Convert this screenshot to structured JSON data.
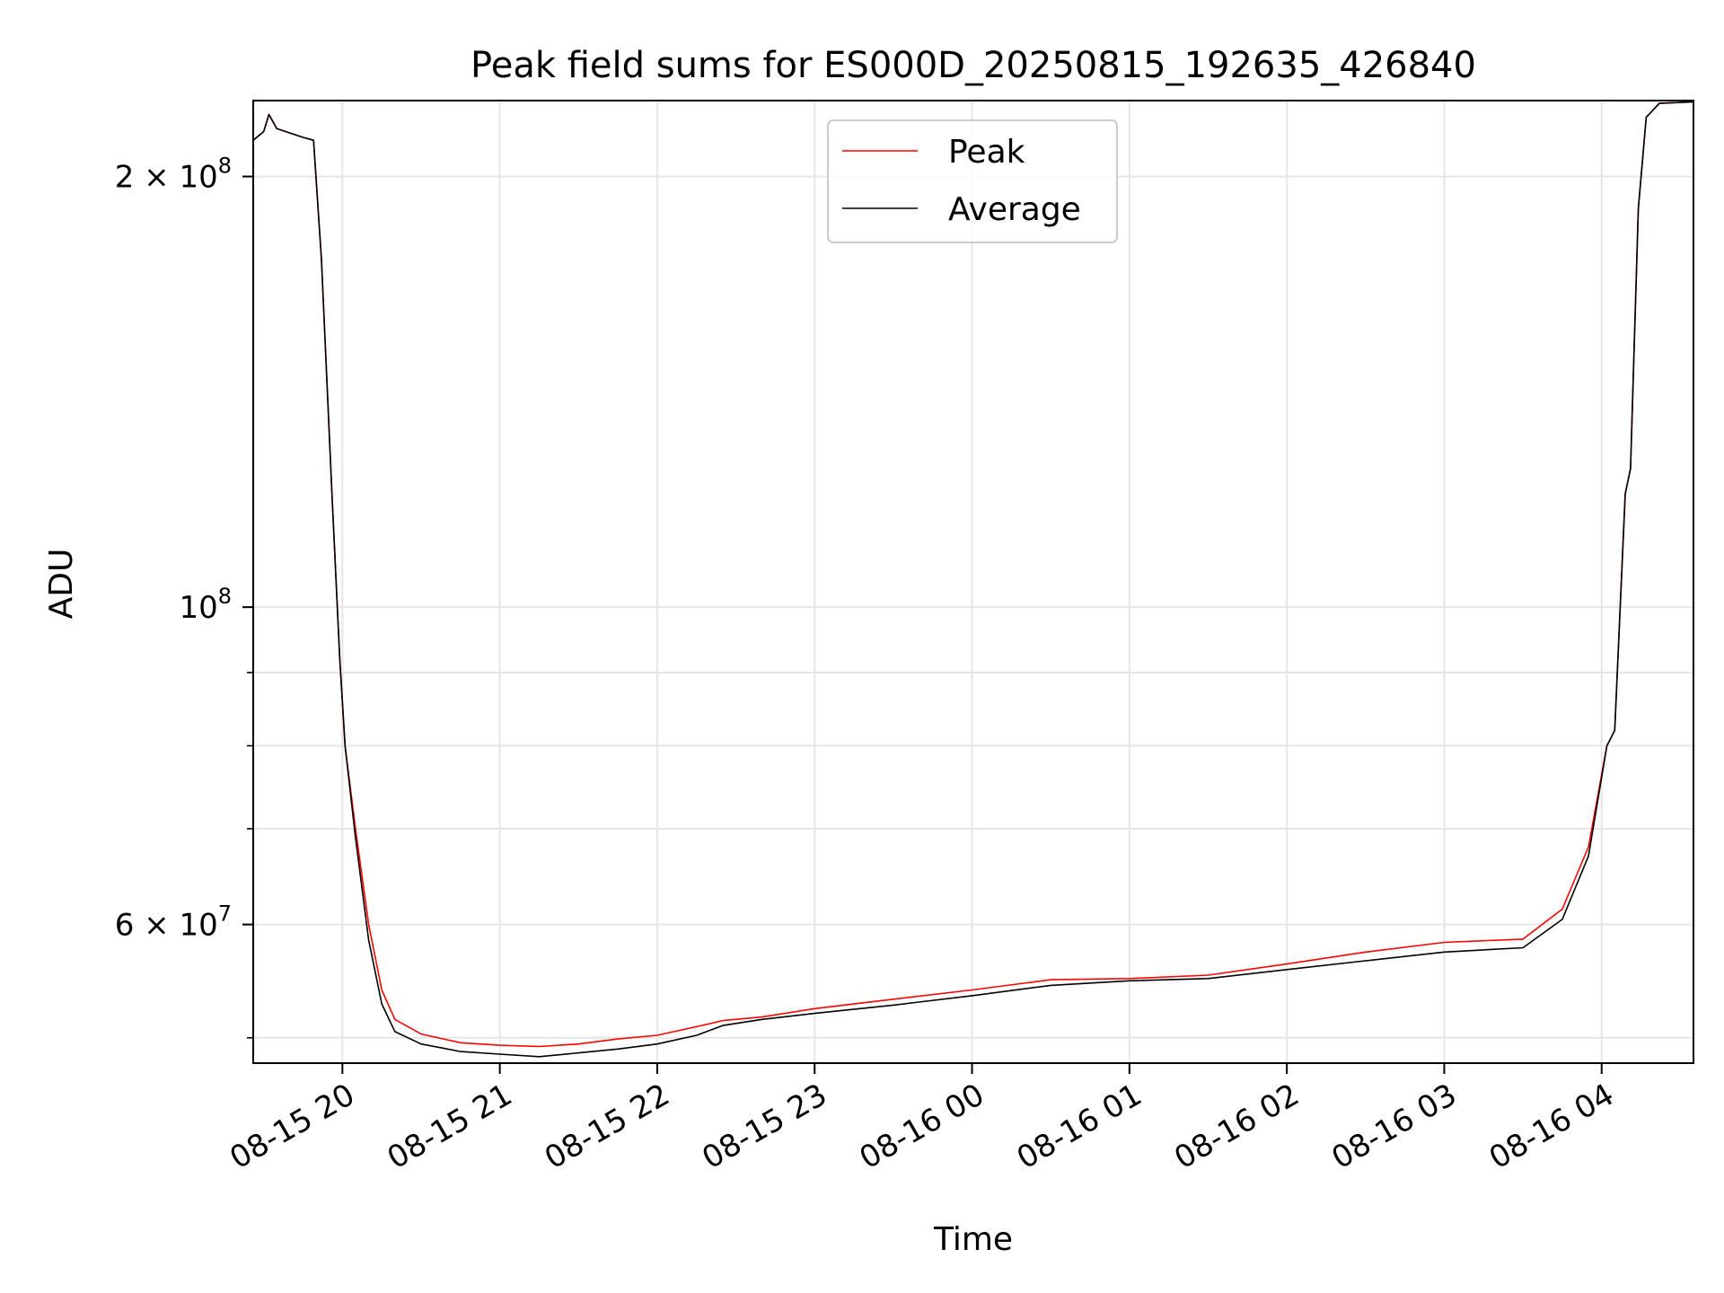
{
  "chart_data": {
    "type": "line",
    "title": "Peak field sums for ES000D_20250815_192635_426840",
    "xlabel": "Time",
    "ylabel": "ADU",
    "yscale": "log",
    "ylim": [
      48000000,
      226000000
    ],
    "xlim": [
      "2025-08-15 19:26",
      "2025-08-16 04:35"
    ],
    "grid": true,
    "legend_position": "top-center",
    "x_ticks": [
      {
        "t": "2025-08-15 20:00",
        "label": "08-15 20"
      },
      {
        "t": "2025-08-15 21:00",
        "label": "08-15 21"
      },
      {
        "t": "2025-08-15 22:00",
        "label": "08-15 22"
      },
      {
        "t": "2025-08-15 23:00",
        "label": "08-15 23"
      },
      {
        "t": "2025-08-16 00:00",
        "label": "08-16 00"
      },
      {
        "t": "2025-08-16 01:00",
        "label": "08-16 01"
      },
      {
        "t": "2025-08-16 02:00",
        "label": "08-16 02"
      },
      {
        "t": "2025-08-16 03:00",
        "label": "08-16 03"
      },
      {
        "t": "2025-08-16 04:00",
        "label": "08-16 04"
      }
    ],
    "y_major_ticks": [
      {
        "value": 200000000,
        "mantissa": "2",
        "exp": "8"
      },
      {
        "value": 100000000,
        "mantissa": "",
        "exp": "8"
      },
      {
        "value": 60000000,
        "mantissa": "6",
        "exp": "7"
      }
    ],
    "y_minor_ticks": [
      50000000,
      70000000,
      80000000,
      90000000
    ],
    "series": [
      {
        "name": "Peak",
        "color": "#ff0000",
        "points": [
          [
            "2025-08-15 19:26",
            212000000
          ],
          [
            "2025-08-15 19:30",
            215000000
          ],
          [
            "2025-08-15 19:32",
            221000000
          ],
          [
            "2025-08-15 19:35",
            216000000
          ],
          [
            "2025-08-15 19:45",
            213000000
          ],
          [
            "2025-08-15 19:49",
            212000000
          ],
          [
            "2025-08-15 19:52",
            175000000
          ],
          [
            "2025-08-15 19:56",
            120000000
          ],
          [
            "2025-08-15 19:59",
            92000000
          ],
          [
            "2025-08-15 20:01",
            80000000
          ],
          [
            "2025-08-15 20:05",
            70000000
          ],
          [
            "2025-08-15 20:10",
            60000000
          ],
          [
            "2025-08-15 20:15",
            54000000
          ],
          [
            "2025-08-15 20:20",
            51500000
          ],
          [
            "2025-08-15 20:30",
            50300000
          ],
          [
            "2025-08-15 20:45",
            49600000
          ],
          [
            "2025-08-15 21:00",
            49400000
          ],
          [
            "2025-08-15 21:15",
            49300000
          ],
          [
            "2025-08-15 21:30",
            49500000
          ],
          [
            "2025-08-15 21:45",
            49900000
          ],
          [
            "2025-08-15 22:00",
            50200000
          ],
          [
            "2025-08-15 22:15",
            50900000
          ],
          [
            "2025-08-15 22:25",
            51400000
          ],
          [
            "2025-08-15 22:40",
            51700000
          ],
          [
            "2025-08-15 23:00",
            52400000
          ],
          [
            "2025-08-15 23:30",
            53200000
          ],
          [
            "2025-08-16 00:00",
            54000000
          ],
          [
            "2025-08-16 00:30",
            54900000
          ],
          [
            "2025-08-16 01:00",
            55000000
          ],
          [
            "2025-08-16 01:30",
            55300000
          ],
          [
            "2025-08-16 02:00",
            56300000
          ],
          [
            "2025-08-16 02:30",
            57400000
          ],
          [
            "2025-08-16 03:00",
            58300000
          ],
          [
            "2025-08-16 03:30",
            58600000
          ],
          [
            "2025-08-16 03:45",
            61500000
          ],
          [
            "2025-08-16 03:55",
            68000000
          ],
          [
            "2025-08-16 04:02",
            80000000
          ],
          [
            "2025-08-16 04:05",
            82000000
          ],
          [
            "2025-08-16 04:09",
            120000000
          ],
          [
            "2025-08-16 04:11",
            125000000
          ],
          [
            "2025-08-16 04:14",
            190000000
          ],
          [
            "2025-08-16 04:17",
            220000000
          ],
          [
            "2025-08-16 04:22",
            225000000
          ],
          [
            "2025-08-16 04:35",
            225500000
          ]
        ]
      },
      {
        "name": "Average",
        "color": "#000000",
        "points": [
          [
            "2025-08-15 19:26",
            212000000
          ],
          [
            "2025-08-15 19:30",
            215000000
          ],
          [
            "2025-08-15 19:32",
            221000000
          ],
          [
            "2025-08-15 19:35",
            216000000
          ],
          [
            "2025-08-15 19:45",
            213000000
          ],
          [
            "2025-08-15 19:49",
            212000000
          ],
          [
            "2025-08-15 19:52",
            175000000
          ],
          [
            "2025-08-15 19:56",
            120000000
          ],
          [
            "2025-08-15 19:59",
            92000000
          ],
          [
            "2025-08-15 20:01",
            80000000
          ],
          [
            "2025-08-15 20:05",
            69000000
          ],
          [
            "2025-08-15 20:10",
            58500000
          ],
          [
            "2025-08-15 20:15",
            52800000
          ],
          [
            "2025-08-15 20:20",
            50500000
          ],
          [
            "2025-08-15 20:30",
            49500000
          ],
          [
            "2025-08-15 20:45",
            48900000
          ],
          [
            "2025-08-15 21:00",
            48700000
          ],
          [
            "2025-08-15 21:15",
            48500000
          ],
          [
            "2025-08-15 21:30",
            48800000
          ],
          [
            "2025-08-15 21:45",
            49100000
          ],
          [
            "2025-08-15 22:00",
            49500000
          ],
          [
            "2025-08-15 22:15",
            50200000
          ],
          [
            "2025-08-15 22:25",
            51000000
          ],
          [
            "2025-08-15 22:40",
            51500000
          ],
          [
            "2025-08-15 23:00",
            52000000
          ],
          [
            "2025-08-15 23:30",
            52700000
          ],
          [
            "2025-08-16 00:00",
            53500000
          ],
          [
            "2025-08-16 00:30",
            54400000
          ],
          [
            "2025-08-16 01:00",
            54800000
          ],
          [
            "2025-08-16 01:30",
            55000000
          ],
          [
            "2025-08-16 02:00",
            55800000
          ],
          [
            "2025-08-16 02:30",
            56600000
          ],
          [
            "2025-08-16 03:00",
            57400000
          ],
          [
            "2025-08-16 03:30",
            57800000
          ],
          [
            "2025-08-16 03:45",
            60500000
          ],
          [
            "2025-08-16 03:55",
            67000000
          ],
          [
            "2025-08-16 04:02",
            80000000
          ],
          [
            "2025-08-16 04:05",
            82000000
          ],
          [
            "2025-08-16 04:09",
            120000000
          ],
          [
            "2025-08-16 04:11",
            125000000
          ],
          [
            "2025-08-16 04:14",
            190000000
          ],
          [
            "2025-08-16 04:17",
            220000000
          ],
          [
            "2025-08-16 04:22",
            225000000
          ],
          [
            "2025-08-16 04:35",
            225500000
          ]
        ]
      }
    ]
  }
}
